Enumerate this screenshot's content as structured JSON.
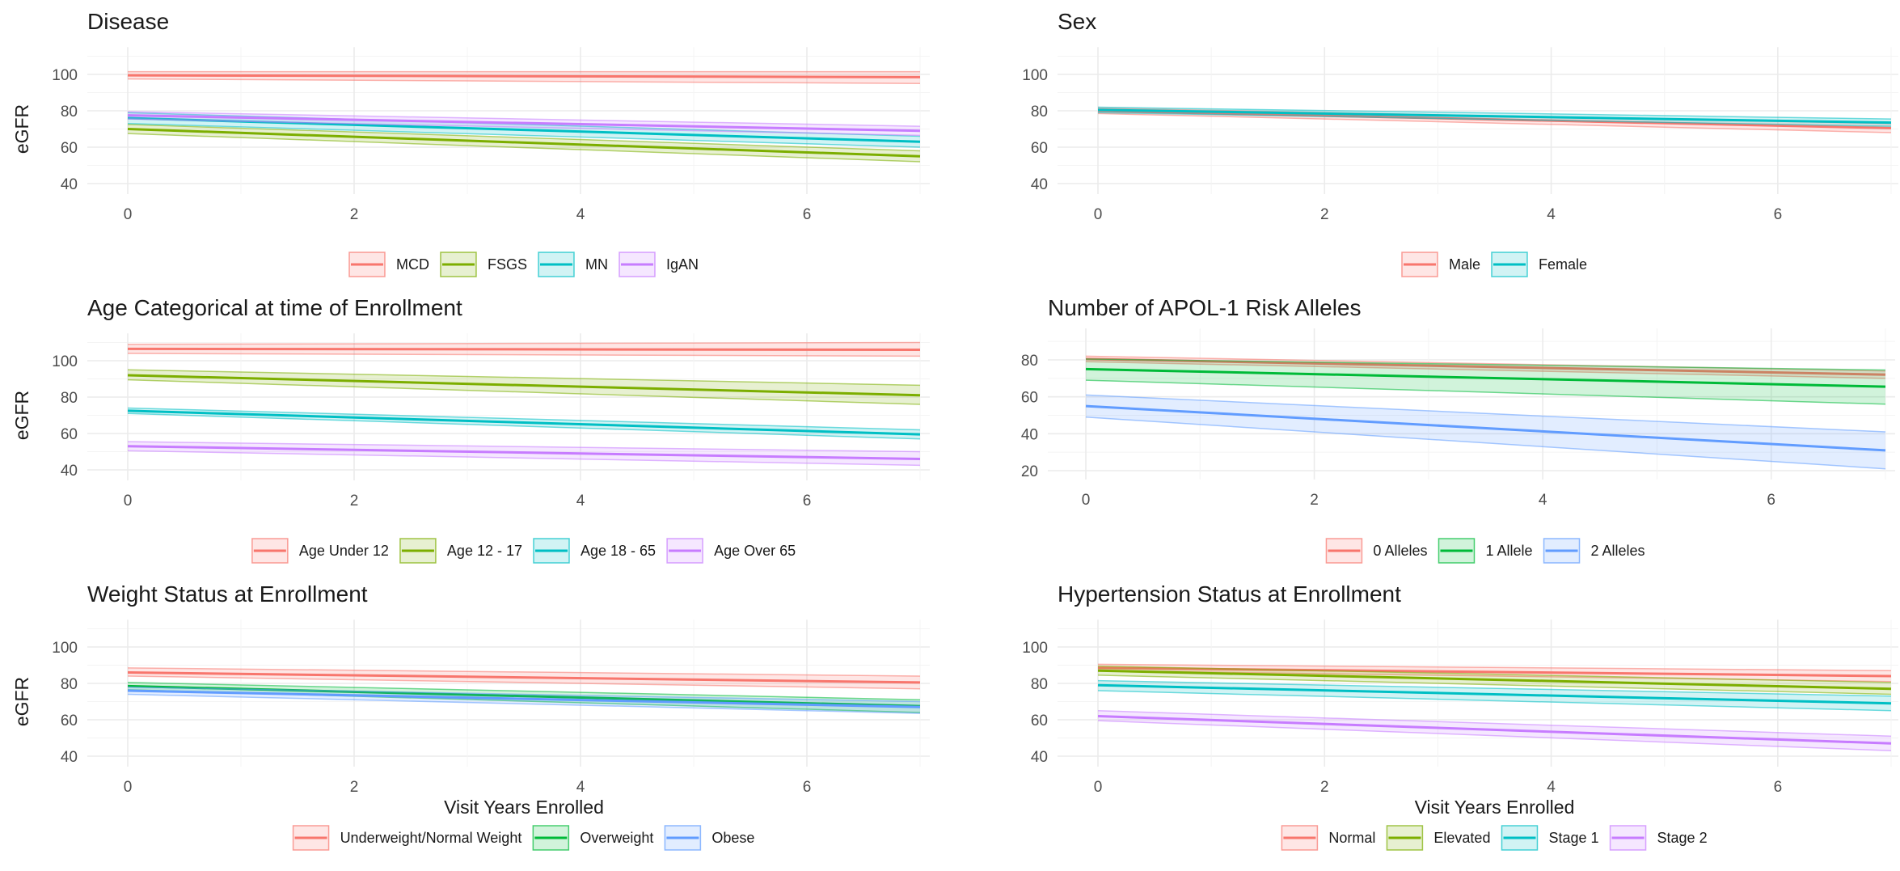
{
  "chart_data": [
    {
      "type": "line",
      "title": "Disease",
      "xlabel": "",
      "ylabel": "eGFR",
      "xlim": [
        0,
        7
      ],
      "ylim": [
        36,
        115
      ],
      "xticks": [
        0,
        2,
        4,
        6
      ],
      "yticks": [
        40,
        60,
        80,
        100
      ],
      "grid": true,
      "legend": "bottom",
      "series": [
        {
          "name": "MCD",
          "color": "#F8766D",
          "x": [
            0,
            7
          ],
          "y": [
            99.5,
            98.5
          ],
          "lower": [
            97.5,
            95
          ],
          "upper": [
            101.5,
            101.5
          ]
        },
        {
          "name": "FSGS",
          "color": "#7CAE00",
          "x": [
            0,
            7
          ],
          "y": [
            70,
            55
          ],
          "lower": [
            67.5,
            52
          ],
          "upper": [
            72.5,
            58
          ]
        },
        {
          "name": "MN",
          "color": "#00BFC4",
          "x": [
            0,
            7
          ],
          "y": [
            76,
            63
          ],
          "lower": [
            73,
            60
          ],
          "upper": [
            79,
            66
          ]
        },
        {
          "name": "IgAN",
          "color": "#C77CFF",
          "x": [
            0,
            7
          ],
          "y": [
            77.5,
            69
          ],
          "lower": [
            75.5,
            66.5
          ],
          "upper": [
            79.5,
            71.5
          ]
        }
      ]
    },
    {
      "type": "line",
      "title": "Sex",
      "xlabel": "",
      "ylabel": "",
      "xlim": [
        0,
        7
      ],
      "ylim": [
        36,
        115
      ],
      "xticks": [
        0,
        2,
        4,
        6
      ],
      "yticks": [
        40,
        60,
        80,
        100
      ],
      "grid": true,
      "legend": "bottom",
      "series": [
        {
          "name": "Male",
          "color": "#F8766D",
          "x": [
            0,
            7
          ],
          "y": [
            80,
            70.5
          ],
          "lower": [
            78.5,
            68
          ],
          "upper": [
            81.5,
            73
          ]
        },
        {
          "name": "Female",
          "color": "#00BFC4",
          "x": [
            0,
            7
          ],
          "y": [
            80.5,
            73.5
          ],
          "lower": [
            79,
            71.5
          ],
          "upper": [
            82,
            75.5
          ]
        }
      ]
    },
    {
      "type": "line",
      "title": "Age Categorical at time of Enrollment",
      "xlabel": "",
      "ylabel": "eGFR",
      "xlim": [
        0,
        7
      ],
      "ylim": [
        36,
        115
      ],
      "xticks": [
        0,
        2,
        4,
        6
      ],
      "yticks": [
        40,
        60,
        80,
        100
      ],
      "grid": true,
      "legend": "bottom",
      "series": [
        {
          "name": "Age Under 12",
          "color": "#F8766D",
          "x": [
            0,
            7
          ],
          "y": [
            106.5,
            106
          ],
          "lower": [
            104,
            102.5
          ],
          "upper": [
            109,
            110
          ]
        },
        {
          "name": "Age 12 - 17",
          "color": "#7CAE00",
          "x": [
            0,
            7
          ],
          "y": [
            92,
            81
          ],
          "lower": [
            89.5,
            76
          ],
          "upper": [
            95,
            86.5
          ]
        },
        {
          "name": "Age 18 - 65",
          "color": "#00BFC4",
          "x": [
            0,
            7
          ],
          "y": [
            72.5,
            59.5
          ],
          "lower": [
            71,
            57
          ],
          "upper": [
            74,
            62
          ]
        },
        {
          "name": "Age Over 65",
          "color": "#C77CFF",
          "x": [
            0,
            7
          ],
          "y": [
            53,
            46
          ],
          "lower": [
            50.5,
            42.5
          ],
          "upper": [
            55.5,
            50
          ]
        }
      ]
    },
    {
      "type": "line",
      "title": "Number of APOL-1 Risk Alleles",
      "xlabel": "",
      "ylabel": "",
      "xlim": [
        0,
        7
      ],
      "ylim": [
        17,
        97
      ],
      "xticks": [
        0,
        2,
        4,
        6
      ],
      "yticks": [
        20,
        40,
        60,
        80
      ],
      "grid": true,
      "legend": "bottom",
      "series": [
        {
          "name": "0 Alleles",
          "color": "#F8766D",
          "x": [
            0,
            7
          ],
          "y": [
            80.5,
            72
          ],
          "lower": [
            79,
            70
          ],
          "upper": [
            82,
            74
          ]
        },
        {
          "name": "1 Allele",
          "color": "#00BA38",
          "x": [
            0,
            7
          ],
          "y": [
            75,
            65.5
          ],
          "lower": [
            69,
            56
          ],
          "upper": [
            80.5,
            74.5
          ]
        },
        {
          "name": "2 Alleles",
          "color": "#619CFF",
          "x": [
            0,
            7
          ],
          "y": [
            55,
            31
          ],
          "lower": [
            49,
            21
          ],
          "upper": [
            61,
            41
          ]
        }
      ]
    },
    {
      "type": "line",
      "title": "Weight Status at Enrollment",
      "xlabel": "Visit Years Enrolled",
      "ylabel": "eGFR",
      "xlim": [
        0,
        7
      ],
      "ylim": [
        36,
        115
      ],
      "xticks": [
        0,
        2,
        4,
        6
      ],
      "yticks": [
        40,
        60,
        80,
        100
      ],
      "grid": true,
      "legend": "bottom",
      "series": [
        {
          "name": "Underweight/Normal Weight",
          "color": "#F8766D",
          "x": [
            0,
            7
          ],
          "y": [
            86,
            80.5
          ],
          "lower": [
            84,
            77
          ],
          "upper": [
            88.5,
            84
          ]
        },
        {
          "name": "Overweight",
          "color": "#00BA38",
          "x": [
            0,
            7
          ],
          "y": [
            78.5,
            67.5
          ],
          "lower": [
            76.5,
            64
          ],
          "upper": [
            80.5,
            71
          ]
        },
        {
          "name": "Obese",
          "color": "#619CFF",
          "x": [
            0,
            7
          ],
          "y": [
            76,
            67
          ],
          "lower": [
            74,
            63.5
          ],
          "upper": [
            78,
            70
          ]
        }
      ]
    },
    {
      "type": "line",
      "title": "Hypertension Status at Enrollment",
      "xlabel": "Visit Years Enrolled",
      "ylabel": "",
      "xlim": [
        0,
        7
      ],
      "ylim": [
        36,
        115
      ],
      "xticks": [
        0,
        2,
        4,
        6
      ],
      "yticks": [
        40,
        60,
        80,
        100
      ],
      "grid": true,
      "legend": "bottom",
      "series": [
        {
          "name": "Normal",
          "color": "#F8766D",
          "x": [
            0,
            7
          ],
          "y": [
            88.5,
            84
          ],
          "lower": [
            87,
            81
          ],
          "upper": [
            90.5,
            87
          ]
        },
        {
          "name": "Elevated",
          "color": "#7CAE00",
          "x": [
            0,
            7
          ],
          "y": [
            87,
            77
          ],
          "lower": [
            84.5,
            74
          ],
          "upper": [
            89.5,
            80.5
          ]
        },
        {
          "name": "Stage 1",
          "color": "#00BFC4",
          "x": [
            0,
            7
          ],
          "y": [
            79,
            69
          ],
          "lower": [
            76,
            65
          ],
          "upper": [
            81.5,
            73
          ]
        },
        {
          "name": "Stage 2",
          "color": "#C77CFF",
          "x": [
            0,
            7
          ],
          "y": [
            62,
            47
          ],
          "lower": [
            59.5,
            43
          ],
          "upper": [
            65,
            51
          ]
        }
      ]
    }
  ]
}
